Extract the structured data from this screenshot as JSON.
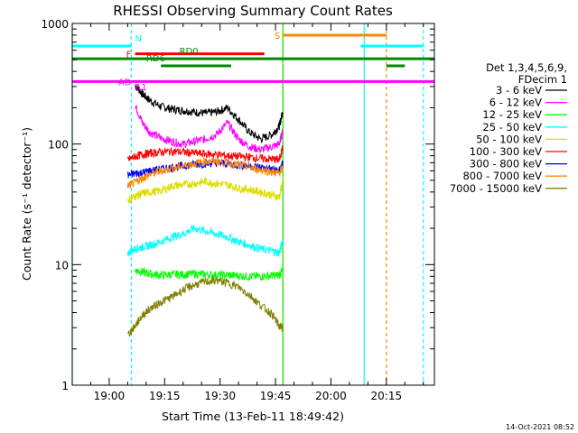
{
  "chart_data": {
    "type": "line",
    "title": "RHESSI Observing Summary Count Rates",
    "xlabel": "Start Time (13-Feb-11 18:49:42)",
    "ylabel": "Count Rate (s⁻¹ detector⁻¹)",
    "x_unit": "UT time (HH:MM)",
    "xlim": [
      "18:50",
      "20:28"
    ],
    "x_tick_labels": [
      "19:00",
      "19:15",
      "19:30",
      "19:45",
      "20:00",
      "20:15"
    ],
    "y_scale": "log",
    "ylim": [
      1,
      1000
    ],
    "y_tick_labels": [
      "1",
      "10",
      "100",
      "1000"
    ],
    "grid": false,
    "legend_position": "right",
    "legend_header": [
      "Det 1,3,4,5,6,9,",
      "FDecim 1"
    ],
    "timestamp": "14-Oct-2021 08:52",
    "x": [
      "19:05",
      "19:07",
      "19:09",
      "19:11",
      "19:14",
      "19:17",
      "19:20",
      "19:23",
      "19:26",
      "19:29",
      "19:32",
      "19:35",
      "19:38",
      "19:41",
      "19:44",
      "19:46",
      "19:47"
    ],
    "series": [
      {
        "name": "3 - 6 keV",
        "color": "#000000",
        "values": [
          null,
          310,
          260,
          230,
          205,
          195,
          190,
          185,
          180,
          185,
          200,
          160,
          125,
          110,
          120,
          140,
          190
        ]
      },
      {
        "name": "6 - 12 keV",
        "color": "#ff00ff",
        "values": [
          null,
          210,
          150,
          125,
          112,
          105,
          100,
          105,
          110,
          120,
          150,
          110,
          95,
          90,
          95,
          100,
          130
        ]
      },
      {
        "name": "12 - 25 keV",
        "color": "#00ff00",
        "values": [
          null,
          9,
          8.7,
          8.4,
          8.2,
          8.3,
          8.3,
          8.4,
          8.3,
          8.2,
          8.2,
          8.1,
          8.0,
          8.0,
          8.1,
          8.2,
          9
        ]
      },
      {
        "name": "25 - 50 keV",
        "color": "#00ffff",
        "values": [
          12.5,
          13.5,
          14,
          14.5,
          15.5,
          17,
          18,
          20,
          19,
          18,
          17,
          15.5,
          14.5,
          13.5,
          13,
          12.5,
          16
        ]
      },
      {
        "name": "50 - 100 keV",
        "color": "#dddd00",
        "values": [
          34,
          37,
          39,
          40,
          41,
          45,
          46,
          47,
          49,
          47,
          46,
          43,
          42,
          40,
          38,
          36,
          50
        ]
      },
      {
        "name": "100 - 300 keV",
        "color": "#ff0000",
        "values": [
          74,
          79,
          82,
          84,
          86,
          87,
          86,
          84,
          83,
          82,
          80,
          79,
          78,
          76,
          75,
          74,
          95
        ]
      },
      {
        "name": "300 - 800 keV",
        "color": "#0000ff",
        "values": [
          55,
          57,
          58,
          60,
          62,
          64,
          66,
          68,
          69,
          70,
          69,
          67,
          66,
          64,
          62,
          60,
          70
        ]
      },
      {
        "name": "800 - 7000 keV",
        "color": "#ff8800",
        "values": [
          45,
          48,
          52,
          56,
          60,
          63,
          66,
          69,
          72,
          72,
          70,
          67,
          64,
          61,
          59,
          57,
          65
        ]
      },
      {
        "name": "7000 - 15000 keV",
        "color": "#808000",
        "values": [
          2.6,
          3.1,
          3.8,
          4.3,
          4.9,
          5.4,
          6.2,
          6.8,
          7.2,
          7.4,
          7.1,
          6.5,
          5.6,
          4.6,
          3.9,
          3.1,
          3.0
        ]
      }
    ],
    "flag_bars": [
      {
        "label": "N",
        "color": "#00ffff",
        "y": 650,
        "segments": [
          [
            "18:50",
            "19:06"
          ],
          [
            "20:08",
            "20:25"
          ]
        ]
      },
      {
        "label": "F",
        "color": "#ff0000",
        "y": 560,
        "segments": [
          [
            "19:07",
            "19:42"
          ]
        ]
      },
      {
        "label": "RD0",
        "color": "#008800",
        "y": 510,
        "segments": [
          [
            "18:50",
            "20:28"
          ]
        ]
      },
      {
        "label": "RD6",
        "color": "#008800",
        "y": 445,
        "segments": [
          [
            "19:14",
            "19:33"
          ],
          [
            "20:15",
            "20:20"
          ]
        ]
      },
      {
        "label": "AD",
        "color": "#ff00ff",
        "y": 330,
        "segments": [
          [
            "18:50",
            "20:28"
          ]
        ]
      },
      {
        "label": "A1",
        "color": "#ff00ff",
        "y": 300,
        "segments": []
      },
      {
        "label": "S",
        "color": "#ff8800",
        "y": 800,
        "segments": [
          [
            "19:47",
            "20:15"
          ]
        ]
      }
    ],
    "vertical_markers": [
      {
        "time": "18:50",
        "color": "#00ffff",
        "style": "solid"
      },
      {
        "time": "19:06",
        "color": "#00ffff",
        "style": "dashed"
      },
      {
        "time": "19:47",
        "color": "#ff8800",
        "style": "solid"
      },
      {
        "time": "19:47",
        "color": "#00ff00",
        "style": "solid"
      },
      {
        "time": "20:09",
        "color": "#00ffff",
        "style": "solid"
      },
      {
        "time": "20:15",
        "color": "#ff8800",
        "style": "dashed"
      },
      {
        "time": "20:25",
        "color": "#00ffff",
        "style": "dashed"
      }
    ]
  }
}
